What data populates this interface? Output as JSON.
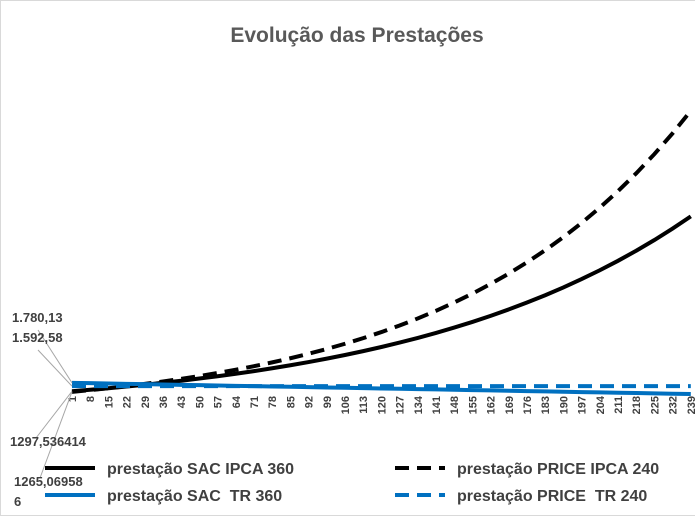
{
  "chart_data": {
    "type": "line",
    "title": "Evolução das Prestações",
    "categories": [
      "1",
      "8",
      "15",
      "22",
      "29",
      "36",
      "43",
      "50",
      "57",
      "64",
      "71",
      "78",
      "85",
      "92",
      "99",
      "106",
      "113",
      "120",
      "127",
      "134",
      "141",
      "148",
      "155",
      "162",
      "169",
      "176",
      "183",
      "190",
      "197",
      "204",
      "211",
      "218",
      "225",
      "232",
      "239"
    ],
    "ylim": [
      0,
      20000
    ],
    "legend": "bottom",
    "grid": false,
    "series": [
      {
        "name": "prestação SAC IPCA 360",
        "color": "#000000",
        "dash": false,
        "values": [
          1297.536414,
          1383,
          1474,
          1571,
          1674,
          1784,
          1901,
          2026,
          2159,
          2301,
          2452,
          2613,
          2785,
          2968,
          3163,
          3371,
          3592,
          3828,
          4080,
          4348,
          4633,
          4938,
          5262,
          5608,
          5976,
          6369,
          6787,
          7233,
          7708,
          8215,
          8754,
          9330,
          9942,
          10596,
          11292
        ],
        "value_labels": [
          "1297,536414",
          null,
          null,
          null,
          null,
          null,
          null,
          null,
          null,
          null,
          null,
          null,
          null,
          null,
          null,
          null,
          null,
          null,
          null,
          null,
          null,
          null,
          null,
          null,
          null,
          null,
          null,
          null,
          null,
          null,
          null,
          null,
          null,
          null,
          null
        ]
      },
      {
        "name": "prestação PRICE IPCA 240",
        "color": "#000000",
        "dash": true,
        "values": [
          1265.069586,
          1366,
          1476,
          1594,
          1721,
          1859,
          2008,
          2168,
          2342,
          2529,
          2732,
          2950,
          3186,
          3441,
          3716,
          4014,
          4335,
          4682,
          5056,
          5461,
          5898,
          6370,
          6879,
          7430,
          8024,
          8666,
          9359,
          10108,
          10917,
          11790,
          12733,
          13752,
          14852,
          16040,
          17324
        ],
        "value_labels": [
          "1265,069586",
          null,
          null,
          null,
          null,
          null,
          null,
          null,
          null,
          null,
          null,
          null,
          null,
          null,
          null,
          null,
          null,
          null,
          null,
          null,
          null,
          null,
          null,
          null,
          null,
          null,
          null,
          null,
          null,
          null,
          null,
          null,
          null,
          null,
          null
        ]
      },
      {
        "name": "prestação SAC  TR 360",
        "color": "#0070c0",
        "dash": false,
        "values": [
          1780.13,
          1761,
          1742,
          1723,
          1704,
          1686,
          1667,
          1648,
          1629,
          1610,
          1592,
          1573,
          1554,
          1535,
          1516,
          1498,
          1479,
          1460,
          1441,
          1422,
          1404,
          1385,
          1366,
          1347,
          1328,
          1310,
          1291,
          1272,
          1253,
          1234,
          1216,
          1197,
          1178,
          1159,
          1140
        ],
        "value_labels": [
          "1.780,13",
          null,
          null,
          null,
          null,
          null,
          null,
          null,
          null,
          null,
          null,
          null,
          null,
          null,
          null,
          null,
          null,
          null,
          null,
          null,
          null,
          null,
          null,
          null,
          null,
          null,
          null,
          null,
          null,
          null,
          null,
          null,
          null,
          null,
          null
        ]
      },
      {
        "name": "prestação PRICE  TR 240",
        "color": "#0070c0",
        "dash": true,
        "values": [
          1592.58,
          1592.58,
          1592.58,
          1592.58,
          1592.58,
          1592.58,
          1592.58,
          1592.58,
          1592.58,
          1592.58,
          1592.58,
          1592.58,
          1592.58,
          1592.58,
          1592.58,
          1592.58,
          1592.58,
          1592.58,
          1592.58,
          1592.58,
          1592.58,
          1592.58,
          1592.58,
          1592.58,
          1592.58,
          1592.58,
          1592.58,
          1592.58,
          1592.58,
          1592.58,
          1592.58,
          1592.58,
          1592.58,
          1592.58,
          1592.58
        ],
        "value_labels": [
          "1.592,58",
          null,
          null,
          null,
          null,
          null,
          null,
          null,
          null,
          null,
          null,
          null,
          null,
          null,
          null,
          null,
          null,
          null,
          null,
          null,
          null,
          null,
          null,
          null,
          null,
          null,
          null,
          null,
          null,
          null,
          null,
          null,
          null,
          null,
          null
        ]
      }
    ]
  }
}
